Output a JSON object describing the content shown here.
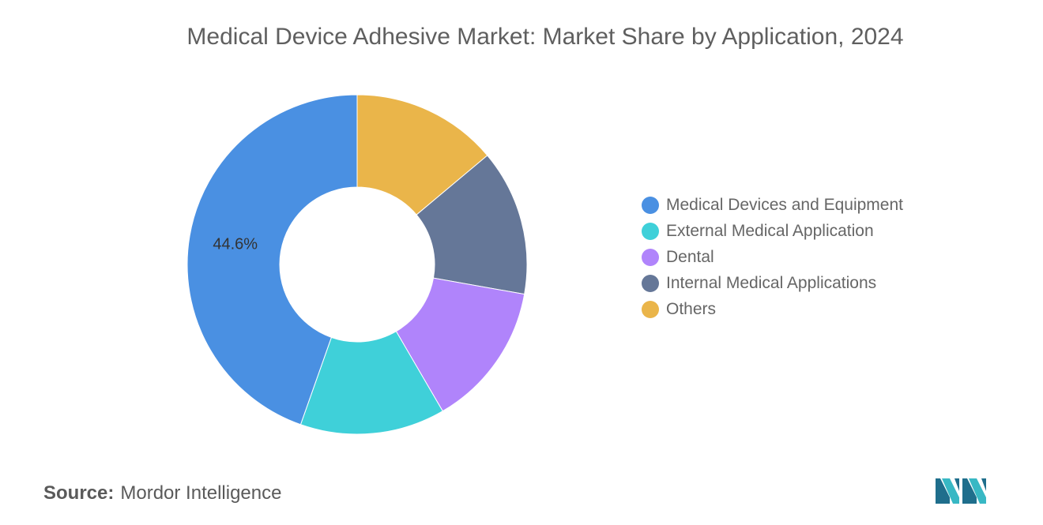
{
  "title": "Medical Device Adhesive Market: Market Share by Application, 2024",
  "chart_data": {
    "type": "pie",
    "donut": true,
    "categories": [
      "Medical Devices and Equipment",
      "External Medical Application",
      "Dental",
      "Internal Medical Applications",
      "Others"
    ],
    "values": [
      44.6,
      13.8,
      13.8,
      13.9,
      13.9
    ],
    "colors": [
      "#4a90e2",
      "#3fd0d9",
      "#b084fb",
      "#657798",
      "#eab54a"
    ],
    "data_labels": [
      "44.6%",
      "",
      "",
      "",
      ""
    ],
    "legend_position": "right"
  },
  "source": {
    "label": "Source:",
    "value": "Mordor Intelligence"
  },
  "logo": {
    "icon": "mordor-intelligence-logo",
    "colors": [
      "#1f6e8c",
      "#38b8c4"
    ]
  }
}
